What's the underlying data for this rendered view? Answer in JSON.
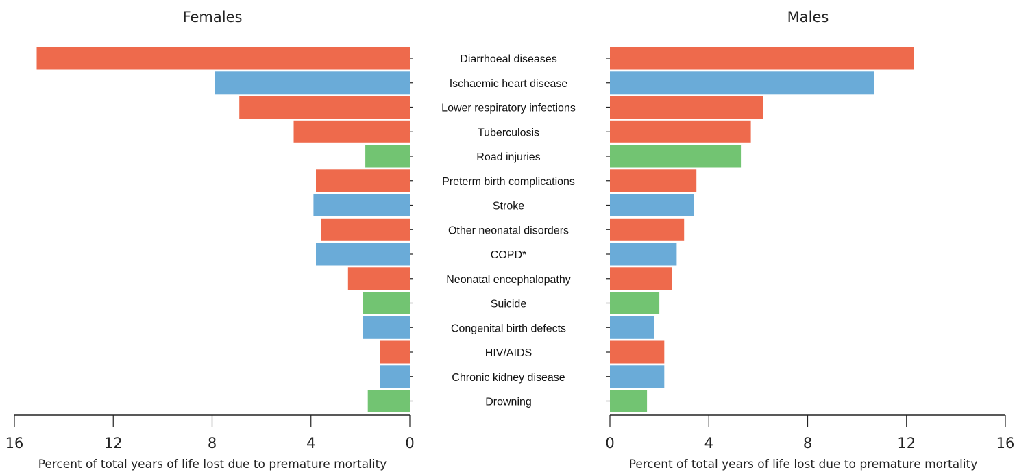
{
  "chart_data": {
    "type": "bar",
    "orientation": "horizontal",
    "layout": "back-to-back",
    "categories": [
      "Diarrhoeal diseases",
      "Ischaemic heart disease",
      "Lower respiratory infections",
      "Tuberculosis",
      "Road injuries",
      "Preterm birth complications",
      "Stroke",
      "Other neonatal disorders",
      "COPD*",
      "Neonatal encephalopathy",
      "Suicide",
      "Congenital birth defects",
      "HIV/AIDS",
      "Chronic kidney disease",
      "Drowning"
    ],
    "category_colors": [
      "#ee6a4c",
      "#6aabd8",
      "#ee6a4c",
      "#ee6a4c",
      "#72c472",
      "#ee6a4c",
      "#6aabd8",
      "#ee6a4c",
      "#6aabd8",
      "#ee6a4c",
      "#72c472",
      "#6aabd8",
      "#ee6a4c",
      "#6aabd8",
      "#72c472"
    ],
    "panels": [
      {
        "name": "Females",
        "direction": "left",
        "values": [
          15.1,
          7.9,
          6.9,
          4.7,
          1.8,
          3.8,
          3.9,
          3.6,
          3.8,
          2.5,
          1.9,
          1.9,
          1.2,
          1.2,
          1.7
        ],
        "xlim": [
          0,
          16
        ],
        "ticks": [
          0,
          4,
          8,
          12,
          16
        ],
        "tick_labels": [
          "0",
          "4",
          "8",
          "12",
          "16"
        ],
        "xlabel": "Percent of total years of life lost due to premature mortality"
      },
      {
        "name": "Males",
        "direction": "right",
        "values": [
          12.3,
          10.7,
          6.2,
          5.7,
          5.3,
          3.5,
          3.4,
          3.0,
          2.7,
          2.5,
          2.0,
          1.8,
          2.2,
          2.2,
          1.5
        ],
        "xlim": [
          0,
          16
        ],
        "ticks": [
          0,
          4,
          8,
          12,
          16
        ],
        "tick_labels": [
          "0",
          "4",
          "8",
          "12",
          "16"
        ],
        "xlabel": "Percent of total years of life lost due to premature mortality"
      }
    ]
  }
}
